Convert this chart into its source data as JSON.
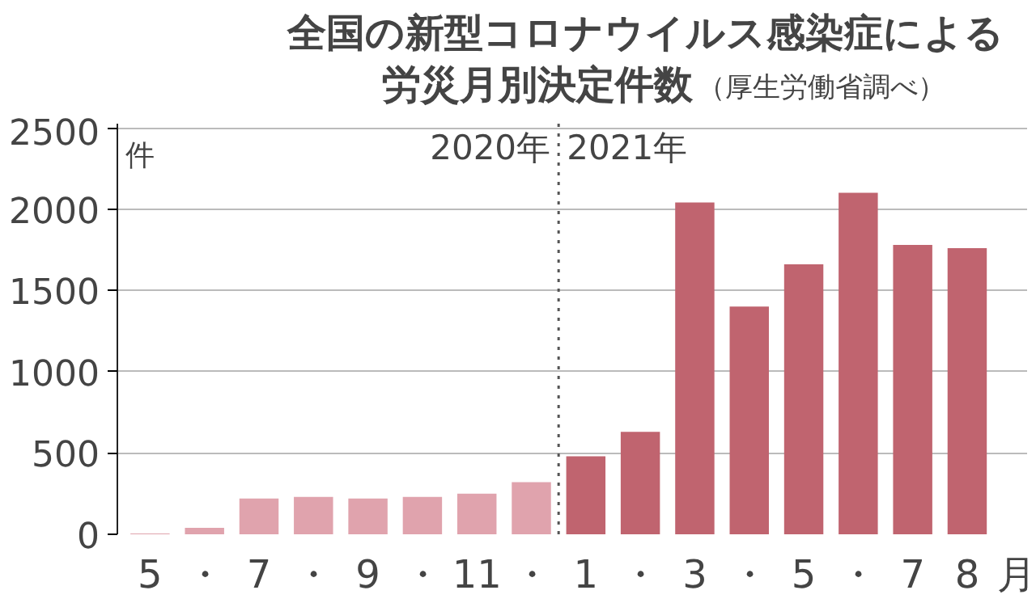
{
  "chart_data": {
    "type": "bar",
    "title": "全国の新型コロナウイルス感染症による労災月別決定件数",
    "subtitle": "（厚生労働省調べ）",
    "categories": [
      "5",
      "・",
      "7",
      "・",
      "9",
      "・",
      "11",
      "・",
      "1",
      "・",
      "3",
      "・",
      "5",
      "・",
      "7",
      "8"
    ],
    "values": [
      5,
      40,
      220,
      230,
      220,
      230,
      250,
      320,
      480,
      630,
      2040,
      1400,
      1660,
      2100,
      1780,
      1760
    ],
    "colors": [
      "#e0a3ad",
      "#e0a3ad",
      "#e0a3ad",
      "#e0a3ad",
      "#e0a3ad",
      "#e0a3ad",
      "#e0a3ad",
      "#e0a3ad",
      "#c0646f",
      "#c0646f",
      "#c0646f",
      "#c0646f",
      "#c0646f",
      "#c0646f",
      "#c0646f",
      "#c0646f"
    ],
    "ylabel": "件",
    "xlabel": "月",
    "ylim": [
      0,
      2500
    ],
    "yticks": [
      0,
      500,
      1000,
      1500,
      2000,
      2500
    ],
    "grid": "y",
    "ref_lines": [
      {
        "axis": "x",
        "value": "1",
        "line_style": "dotted",
        "color": "#555555"
      }
    ],
    "annotations": [
      "2020年",
      "2021年"
    ]
  }
}
